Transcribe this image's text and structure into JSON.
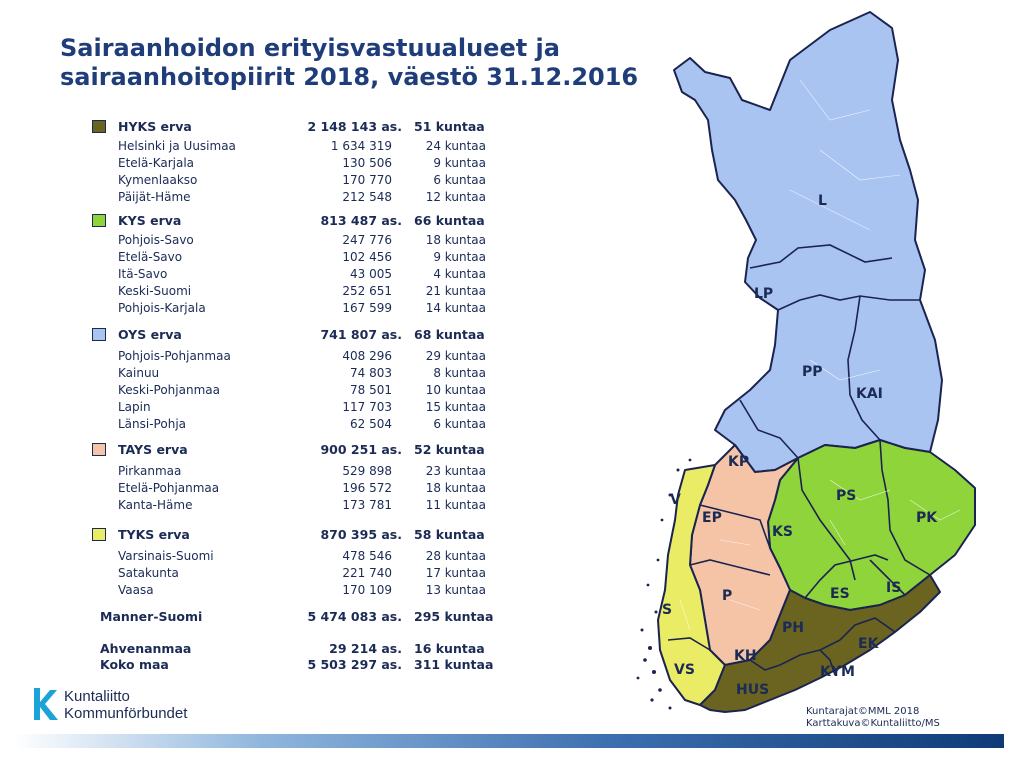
{
  "title": {
    "line1": "Sairaanhoidon erityisvastuualueet ja",
    "line2": "sairaanhoitopiirit 2018, väestö 31.12.2016"
  },
  "colors": {
    "hyks": "#6b6420",
    "kys": "#8ed43a",
    "oys": "#aac4f2",
    "tays": "#f5c4a6",
    "tyks": "#e9ec64"
  },
  "groups": [
    {
      "name": "HYKS erva",
      "population": "2 148 143 as.",
      "municipalities": "51 kuntaa",
      "color": "#6b6420",
      "districts": [
        {
          "name": "Helsinki  ja Uusimaa",
          "population": "1 634 319",
          "municipalities": "24 kuntaa"
        },
        {
          "name": "Etelä-Karjala",
          "population": "130 506",
          "municipalities": "9 kuntaa"
        },
        {
          "name": "Kymenlaakso",
          "population": "170 770",
          "municipalities": "6 kuntaa"
        },
        {
          "name": "Päijät-Häme",
          "population": "212 548",
          "municipalities": "12 kuntaa"
        }
      ]
    },
    {
      "name": "KYS erva",
      "population": "813 487 as.",
      "municipalities": "66 kuntaa",
      "color": "#8ed43a",
      "districts": [
        {
          "name": "Pohjois-Savo",
          "population": "247 776",
          "municipalities": "18 kuntaa"
        },
        {
          "name": "Etelä-Savo",
          "population": "102 456",
          "municipalities": "9 kuntaa"
        },
        {
          "name": "Itä-Savo",
          "population": "43 005",
          "municipalities": "4 kuntaa"
        },
        {
          "name": "Keski-Suomi",
          "population": "252 651",
          "municipalities": "21 kuntaa"
        },
        {
          "name": "Pohjois-Karjala",
          "population": "167 599",
          "municipalities": "14 kuntaa"
        }
      ]
    },
    {
      "name": "OYS erva",
      "population": "741 807 as.",
      "municipalities": "68 kuntaa",
      "color": "#aac4f2",
      "districts": [
        {
          "name": "Pohjois-Pohjanmaa",
          "population": "408 296",
          "municipalities": "29 kuntaa"
        },
        {
          "name": "Kainuu",
          "population": "74 803",
          "municipalities": "8 kuntaa"
        },
        {
          "name": "Keski-Pohjanmaa",
          "population": "78 501",
          "municipalities": "10 kuntaa"
        },
        {
          "name": "Lapin",
          "population": "117 703",
          "municipalities": "15 kuntaa"
        },
        {
          "name": "Länsi-Pohja",
          "population": "62 504",
          "municipalities": "6 kuntaa"
        }
      ]
    },
    {
      "name": "TAYS erva",
      "population": "900 251 as.",
      "municipalities": "52 kuntaa",
      "color": "#f5c4a6",
      "districts": [
        {
          "name": "Pirkanmaa",
          "population": "529 898",
          "municipalities": "23 kuntaa"
        },
        {
          "name": "Etelä-Pohjanmaa",
          "population": "196 572",
          "municipalities": "18 kuntaa"
        },
        {
          "name": "Kanta-Häme",
          "population": "173 781",
          "municipalities": "11 kuntaa"
        }
      ]
    },
    {
      "name": "TYKS erva",
      "population": "870 395 as.",
      "municipalities": "58 kuntaa",
      "color": "#e9ec64",
      "districts": [
        {
          "name": "Varsinais-Suomi",
          "population": "478 546",
          "municipalities": "28 kuntaa"
        },
        {
          "name": "Satakunta",
          "population": "221 740",
          "municipalities": "17 kuntaa"
        },
        {
          "name": "Vaasa",
          "population": "170 109",
          "municipalities": "13 kuntaa"
        }
      ]
    }
  ],
  "totals": [
    {
      "name": "Manner-Suomi",
      "population": "5 474 083 as.",
      "municipalities": "295 kuntaa"
    },
    {
      "name": "Ahvenanmaa",
      "population": "29 214 as.",
      "municipalities": "16 kuntaa"
    },
    {
      "name": "Koko maa",
      "population": "5 503 297 as.",
      "municipalities": "311 kuntaa"
    }
  ],
  "map": {
    "labels": [
      "L",
      "LP",
      "PP",
      "KAI",
      "KP",
      "V",
      "EP",
      "KS",
      "PS",
      "PK",
      "ES",
      "IS",
      "S",
      "P",
      "PH",
      "EK",
      "KH",
      "VS",
      "KYM",
      "HUS"
    ]
  },
  "logo": {
    "line1": "Kuntaliitto",
    "line2": "Kommunförbundet"
  },
  "credits": {
    "line1": "Kuntarajat©MML 2018",
    "line2": "Karttakuva©Kuntaliitto/MS"
  }
}
